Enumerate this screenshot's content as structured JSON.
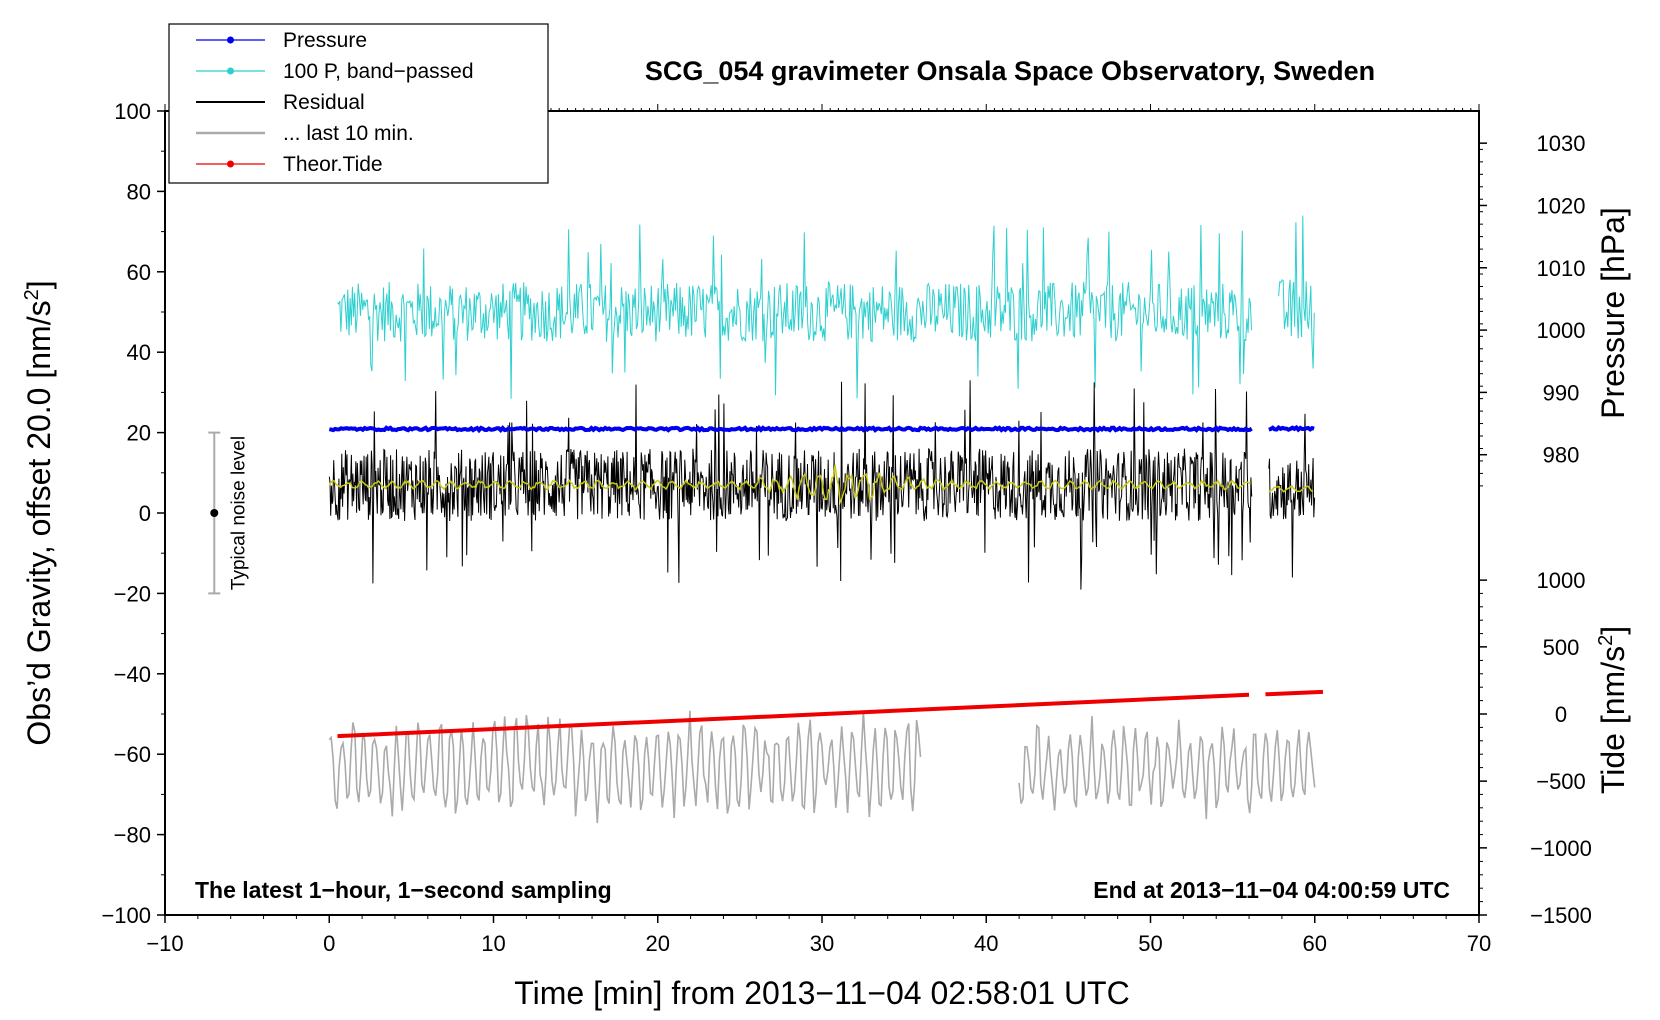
{
  "chart_data": {
    "type": "line",
    "title": "SCG_054 gravimeter Onsala Space Observatory, Sweden",
    "xlabel": "Time [min] from 2013−11−04 02:58:01 UTC",
    "ylabel": "Obs’d Gravity, offset 20.0 [nm/s²]",
    "ylabel_main": "Obs’d Gravity, offset 20.0 [nm/s",
    "ylabel_sup": "2",
    "ylabel_close": "]",
    "xlim": [
      -10,
      70
    ],
    "ylim": [
      -100,
      100
    ],
    "x_ticks": [
      -10,
      0,
      10,
      20,
      30,
      40,
      50,
      60,
      70
    ],
    "x_tick_labels": [
      "−10",
      "0",
      "10",
      "20",
      "30",
      "40",
      "50",
      "60",
      "70"
    ],
    "y_ticks": [
      -100,
      -80,
      -60,
      -40,
      -20,
      0,
      20,
      40,
      60,
      80,
      100
    ],
    "y_tick_labels": [
      "−100",
      "−80",
      "−60",
      "−40",
      "−20",
      "0",
      "20",
      "40",
      "60",
      "80",
      "100"
    ],
    "right_axis_pressure": {
      "label": "Pressure [hPa]",
      "ticks": [
        980,
        990,
        1000,
        1010,
        1020,
        1030
      ],
      "tick_labels": [
        "980",
        "990",
        "1000",
        "1010",
        "1020",
        "1030"
      ],
      "map_y_values": [
        14.5,
        30,
        45.5,
        61,
        76.5,
        92
      ]
    },
    "right_axis_tide": {
      "label": "Tide [nm/s²]",
      "label_main": "Tide [nm/s",
      "label_sup": "2",
      "label_close": "]",
      "ticks": [
        -1500,
        -1000,
        -500,
        0,
        500,
        1000
      ],
      "tick_labels": [
        "−1500",
        "−1000",
        "−500",
        "0",
        "500",
        "1000"
      ],
      "map_y_values": [
        -100,
        -83.3,
        -66.7,
        -50,
        -33.3,
        -16.7
      ]
    },
    "legend": {
      "position": "top-left",
      "entries": [
        {
          "label": "Pressure",
          "color": "#0000ee",
          "marker": true
        },
        {
          "label": "100 P, band−passed",
          "color": "#2ecfcf",
          "marker": true
        },
        {
          "label": "Residual",
          "color": "#000000",
          "marker": false
        },
        {
          "label": "... last 10 min.",
          "color": "#aaaaaa",
          "marker": false
        },
        {
          "label": "Theor.Tide",
          "color": "#ee0000",
          "marker": true
        }
      ]
    },
    "annotations": {
      "left": "The latest 1−hour, 1−second sampling",
      "right": "End at 2013−11−04 04:00:59 UTC"
    },
    "noise_bar": {
      "label": "Typical noise level",
      "x": -7,
      "center": 0,
      "range": [
        -20,
        20
      ],
      "color": "#aaaaaa"
    },
    "series": [
      {
        "name": "Pressure",
        "color": "#0000ee",
        "segments": [
          {
            "x_start": 0,
            "x_end": 56.2,
            "level": 20.9,
            "noise": 0.6
          },
          {
            "x_start": 57.2,
            "x_end": 60.0,
            "level": 21.0,
            "noise": 0.6
          }
        ]
      },
      {
        "name": "100 P, band−passed",
        "color": "#2ecfcf",
        "segments": [
          {
            "x_start": 0.5,
            "x_end": 56.2,
            "level": 50,
            "amplitude": 7.5
          },
          {
            "x_start": 57.8,
            "x_end": 60.0,
            "level": 50,
            "amplitude": 8.5
          }
        ]
      },
      {
        "name": "Residual",
        "color": "#000000",
        "segments": [
          {
            "x_start": 0,
            "x_end": 56.2,
            "level": 7,
            "amplitude": 9
          },
          {
            "x_start": 57.2,
            "x_end": 60.0,
            "level": 6,
            "amplitude": 8
          }
        ]
      },
      {
        "name": "Residual (smoothed)",
        "color": "#c9c918",
        "segments": [
          {
            "x_start": 0,
            "x_end": 56.2,
            "level": 7,
            "amplitude": 0.8
          },
          {
            "x_start": 57.2,
            "x_end": 60.0,
            "level": 6,
            "amplitude": 0.6
          }
        ]
      },
      {
        "name": "... last 10 min.",
        "color": "#aaaaaa",
        "segments": [
          {
            "x_start": 0,
            "x_end": 36,
            "level": -63,
            "amplitude": 10
          },
          {
            "x_start": 42,
            "x_end": 60,
            "level": -63,
            "amplitude": 9
          }
        ]
      },
      {
        "name": "Theor.Tide",
        "color": "#ee0000",
        "segments": [
          {
            "x_start": 0.5,
            "x_end": 56.0,
            "y_start": -55.5,
            "y_end": -45.2
          },
          {
            "x_start": 57.0,
            "x_end": 60.5,
            "y_start": -45.1,
            "y_end": -44.5
          }
        ]
      }
    ]
  }
}
